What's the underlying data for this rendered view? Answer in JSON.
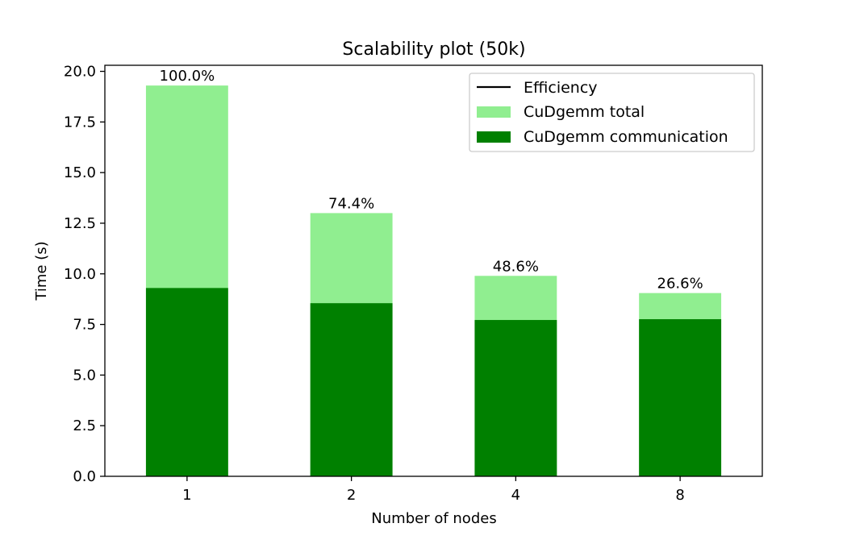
{
  "chart_data": {
    "type": "bar",
    "title": "Scalability plot (50k)",
    "xlabel": "Number of nodes",
    "ylabel": "Time (s)",
    "categories": [
      "1",
      "2",
      "4",
      "8"
    ],
    "ylim": [
      0,
      20.3
    ],
    "yticks": [
      "0.0",
      "2.5",
      "5.0",
      "7.5",
      "10.0",
      "12.5",
      "15.0",
      "17.5",
      "20.0"
    ],
    "series": [
      {
        "name": "CuDgemm total",
        "values": [
          19.3,
          13.0,
          9.9,
          9.05
        ],
        "color": "#90ee90"
      },
      {
        "name": "CuDgemm communication",
        "values": [
          9.3,
          8.55,
          7.72,
          7.76
        ],
        "color": "#008000"
      }
    ],
    "efficiency": {
      "name": "Efficiency",
      "labels": [
        "100.0%",
        "74.4%",
        "48.6%",
        "26.6%"
      ],
      "color": "#000000"
    },
    "legend_position": "top-right",
    "grid": false
  }
}
